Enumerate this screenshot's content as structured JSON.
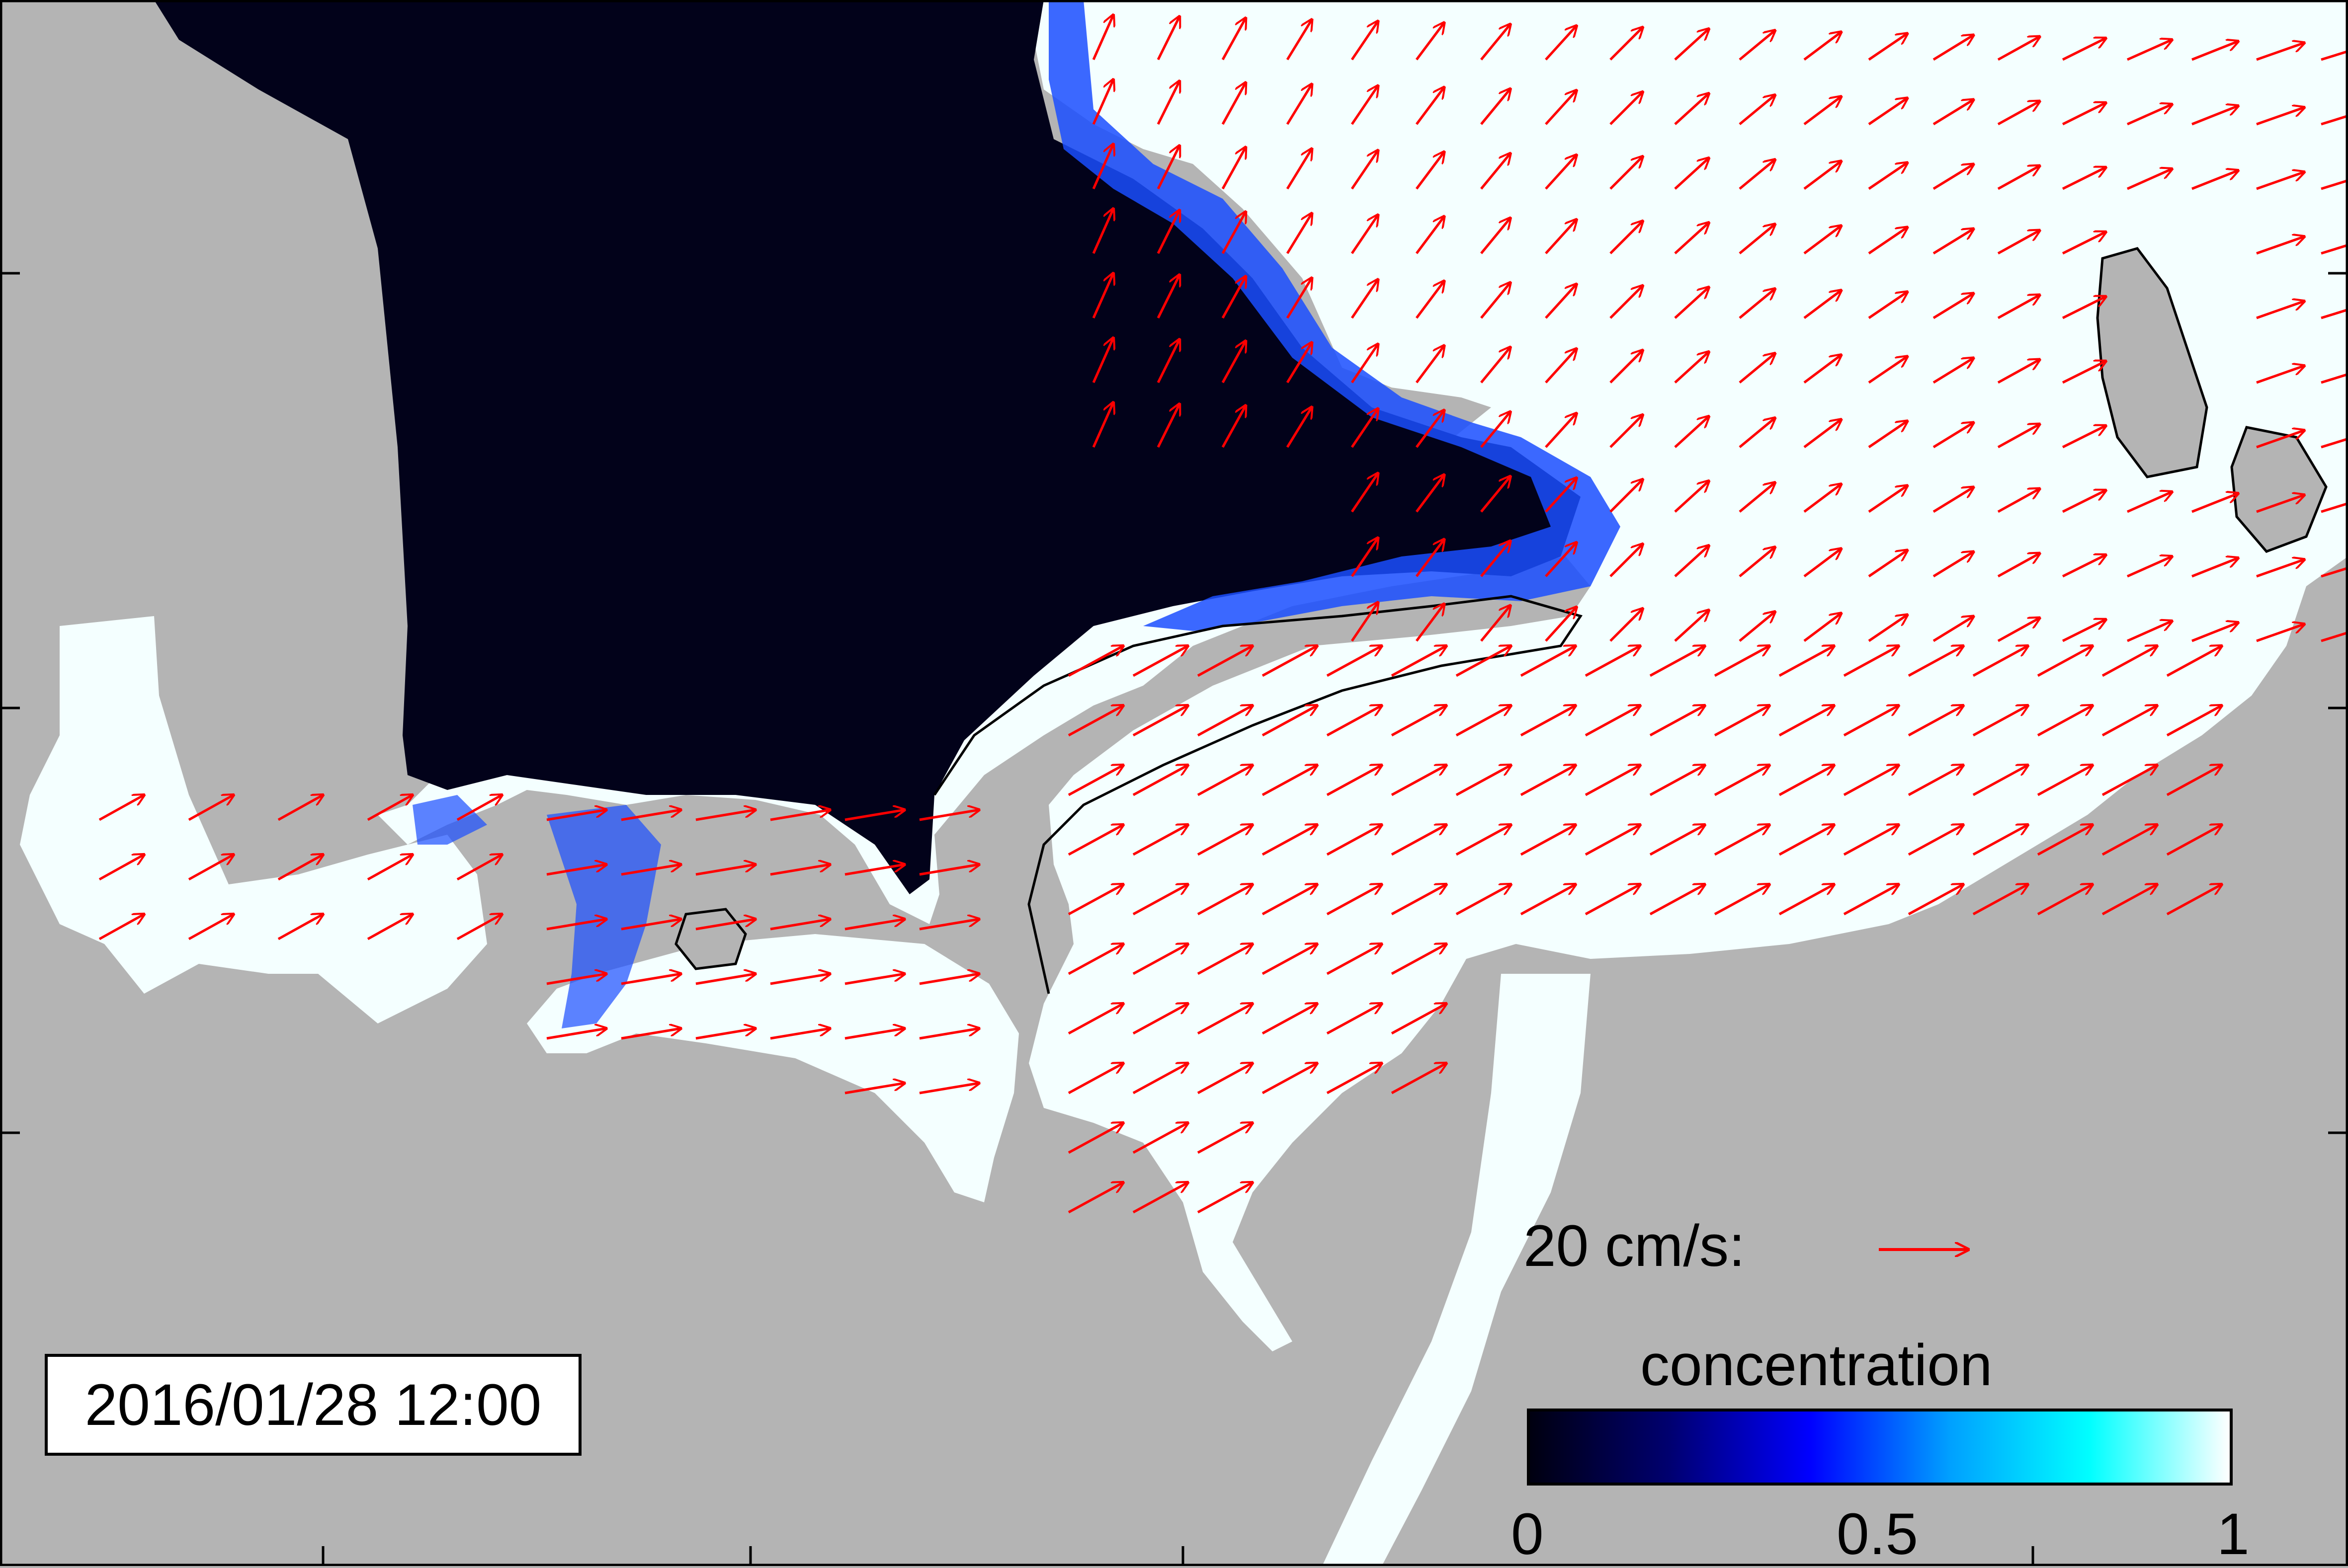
{
  "timestamp": "2016/01/28 12:00",
  "scale_arrow": {
    "label": "20 cm/s:",
    "speed_cm_s": 20,
    "color": "#ff0000"
  },
  "colorbar": {
    "title": "concentration",
    "min": 0,
    "max": 1,
    "ticks": [
      "0",
      "0.5",
      "1"
    ],
    "stops": [
      "#000010",
      "#000070",
      "#0000ff",
      "#00a0ff",
      "#00ffff",
      "#ffffff"
    ]
  },
  "colors": {
    "land": "#b4b4b4",
    "open_water": "#02021a",
    "ice_full": "#f4ffff",
    "ice_edge": "#1a4dff",
    "arrow": "#ff0000",
    "coastline": "#000000"
  }
}
